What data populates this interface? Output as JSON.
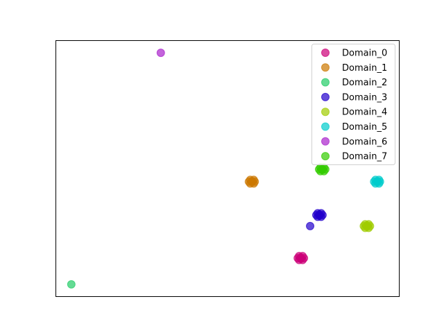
{
  "chart_data": {
    "type": "scatter",
    "title": "",
    "xlabel": "",
    "ylabel": "",
    "xlim": [
      0,
      100
    ],
    "ylim": [
      0,
      100
    ],
    "grid": false,
    "axes_ticks": false,
    "legend": {
      "position": "top-right"
    },
    "series": [
      {
        "name": "Domain_0",
        "color": "#cc0077",
        "points": [
          [
            70.4,
            15.1
          ],
          [
            71.4,
            15.1
          ],
          [
            72.2,
            15.1
          ],
          [
            70.8,
            14.4
          ],
          [
            71.8,
            14.4
          ],
          [
            70.8,
            15.9
          ],
          [
            71.8,
            15.9
          ],
          [
            71.2,
            15.1
          ]
        ],
        "marker": "o"
      },
      {
        "name": "Domain_1",
        "color": "#cc7700",
        "points": [
          [
            56.2,
            44.9
          ],
          [
            57.2,
            44.9
          ],
          [
            57.9,
            44.9
          ],
          [
            56.6,
            44.2
          ],
          [
            57.6,
            44.2
          ],
          [
            56.6,
            45.6
          ],
          [
            57.6,
            45.6
          ],
          [
            57.0,
            44.9
          ]
        ]
      },
      {
        "name": "Domain_2",
        "color": "#22cc66",
        "points": [
          [
            4.6,
            4.9
          ]
        ]
      },
      {
        "name": "Domain_3",
        "color": "#2200cc",
        "points": [
          [
            75.8,
            31.9
          ],
          [
            76.8,
            31.9
          ],
          [
            77.6,
            31.9
          ],
          [
            76.2,
            31.2
          ],
          [
            77.2,
            31.2
          ],
          [
            76.2,
            32.6
          ],
          [
            77.2,
            32.6
          ],
          [
            76.6,
            31.9
          ],
          [
            74.0,
            27.6
          ]
        ]
      },
      {
        "name": "Domain_4",
        "color": "#a0cc00",
        "points": [
          [
            89.6,
            27.6
          ],
          [
            90.6,
            27.6
          ],
          [
            91.4,
            27.6
          ],
          [
            90.0,
            26.9
          ],
          [
            91.0,
            26.9
          ],
          [
            90.0,
            28.3
          ],
          [
            91.0,
            28.3
          ],
          [
            90.4,
            27.6
          ]
        ]
      },
      {
        "name": "Domain_5",
        "color": "#00cccc",
        "points": [
          [
            92.6,
            44.9
          ],
          [
            93.6,
            44.9
          ],
          [
            94.3,
            44.9
          ],
          [
            93.0,
            44.2
          ],
          [
            94.0,
            44.2
          ],
          [
            93.0,
            45.6
          ],
          [
            94.0,
            45.6
          ],
          [
            93.4,
            44.9
          ]
        ]
      },
      {
        "name": "Domain_6",
        "color": "#aa22cc",
        "points": [
          [
            30.6,
            95.1
          ]
        ]
      },
      {
        "name": "Domain_7",
        "color": "#33cc00",
        "points": [
          [
            76.6,
            49.7
          ],
          [
            77.6,
            49.7
          ],
          [
            78.4,
            49.7
          ],
          [
            77.0,
            49.0
          ],
          [
            78.0,
            49.0
          ],
          [
            77.0,
            50.4
          ],
          [
            78.0,
            50.4
          ],
          [
            77.4,
            49.7
          ]
        ]
      }
    ]
  }
}
